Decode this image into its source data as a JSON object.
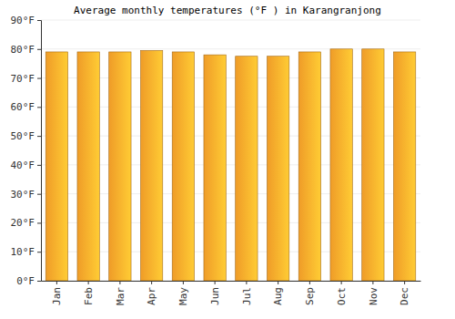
{
  "chart_data": {
    "type": "bar",
    "title": "Average monthly temperatures (°F ) in Karangranjong",
    "categories": [
      "Jan",
      "Feb",
      "Mar",
      "Apr",
      "May",
      "Jun",
      "Jul",
      "Aug",
      "Sep",
      "Oct",
      "Nov",
      "Dec"
    ],
    "values": [
      79,
      79,
      79,
      79.5,
      79,
      78,
      77.5,
      77.5,
      79,
      80,
      80,
      79
    ],
    "color": "#fca52a",
    "ylim": [
      0,
      90
    ],
    "yticks": [
      {
        "value": 0,
        "label": "0°F"
      },
      {
        "value": 10,
        "label": "10°F"
      },
      {
        "value": 20,
        "label": "20°F"
      },
      {
        "value": 30,
        "label": "30°F"
      },
      {
        "value": 40,
        "label": "40°F"
      },
      {
        "value": 50,
        "label": "50°F"
      },
      {
        "value": 60,
        "label": "60°F"
      },
      {
        "value": 70,
        "label": "70°F"
      },
      {
        "value": 80,
        "label": "80°F"
      },
      {
        "value": 90,
        "label": "90°F"
      }
    ],
    "grid": true
  }
}
